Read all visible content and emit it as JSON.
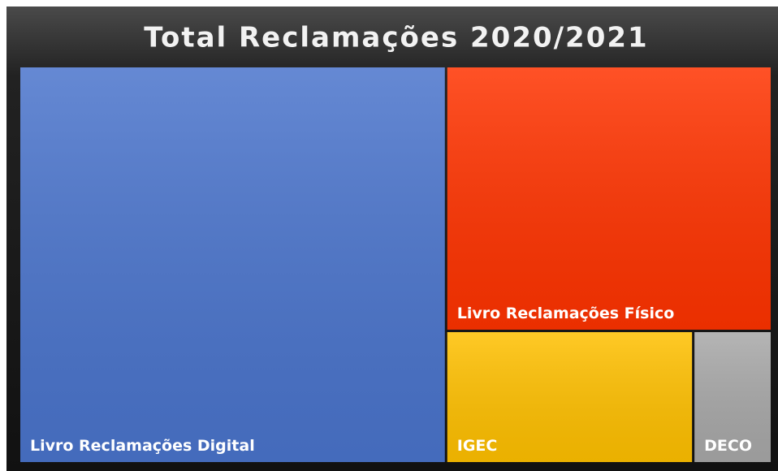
{
  "chart_data": {
    "type": "treemap",
    "title": "Total Reclamações 2020/2021",
    "categories": [
      "Livro Reclamações Digital",
      "Livro Reclamações Físico",
      "IGEC",
      "DECO"
    ],
    "values": [
      57,
      29,
      11,
      3.5
    ],
    "colors": [
      "#4a74cc",
      "#ff3300",
      "#ffc000",
      "#a8a8a8"
    ]
  }
}
